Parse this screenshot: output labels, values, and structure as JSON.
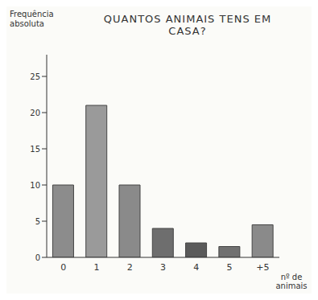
{
  "chart_data": {
    "type": "bar",
    "title": "QUANTOS ANIMAIS TENS EM CASA?",
    "x_label": "nº de animais",
    "y_label": "Frequência absoluta",
    "categories": [
      "0",
      "1",
      "2",
      "3",
      "4",
      "5",
      "+5"
    ],
    "values": [
      10,
      21,
      10,
      4,
      2,
      1.5,
      4.5
    ],
    "colors": [
      "#8c8c8c",
      "#9a9a9a",
      "#8a8a8a",
      "#6e6e6e",
      "#5a5a5a",
      "#707070",
      "#8a8a8a"
    ],
    "ylim": [
      0,
      28
    ],
    "yticks": [
      0,
      5,
      10,
      15,
      20,
      25
    ],
    "grid": false,
    "data_labels": false
  }
}
